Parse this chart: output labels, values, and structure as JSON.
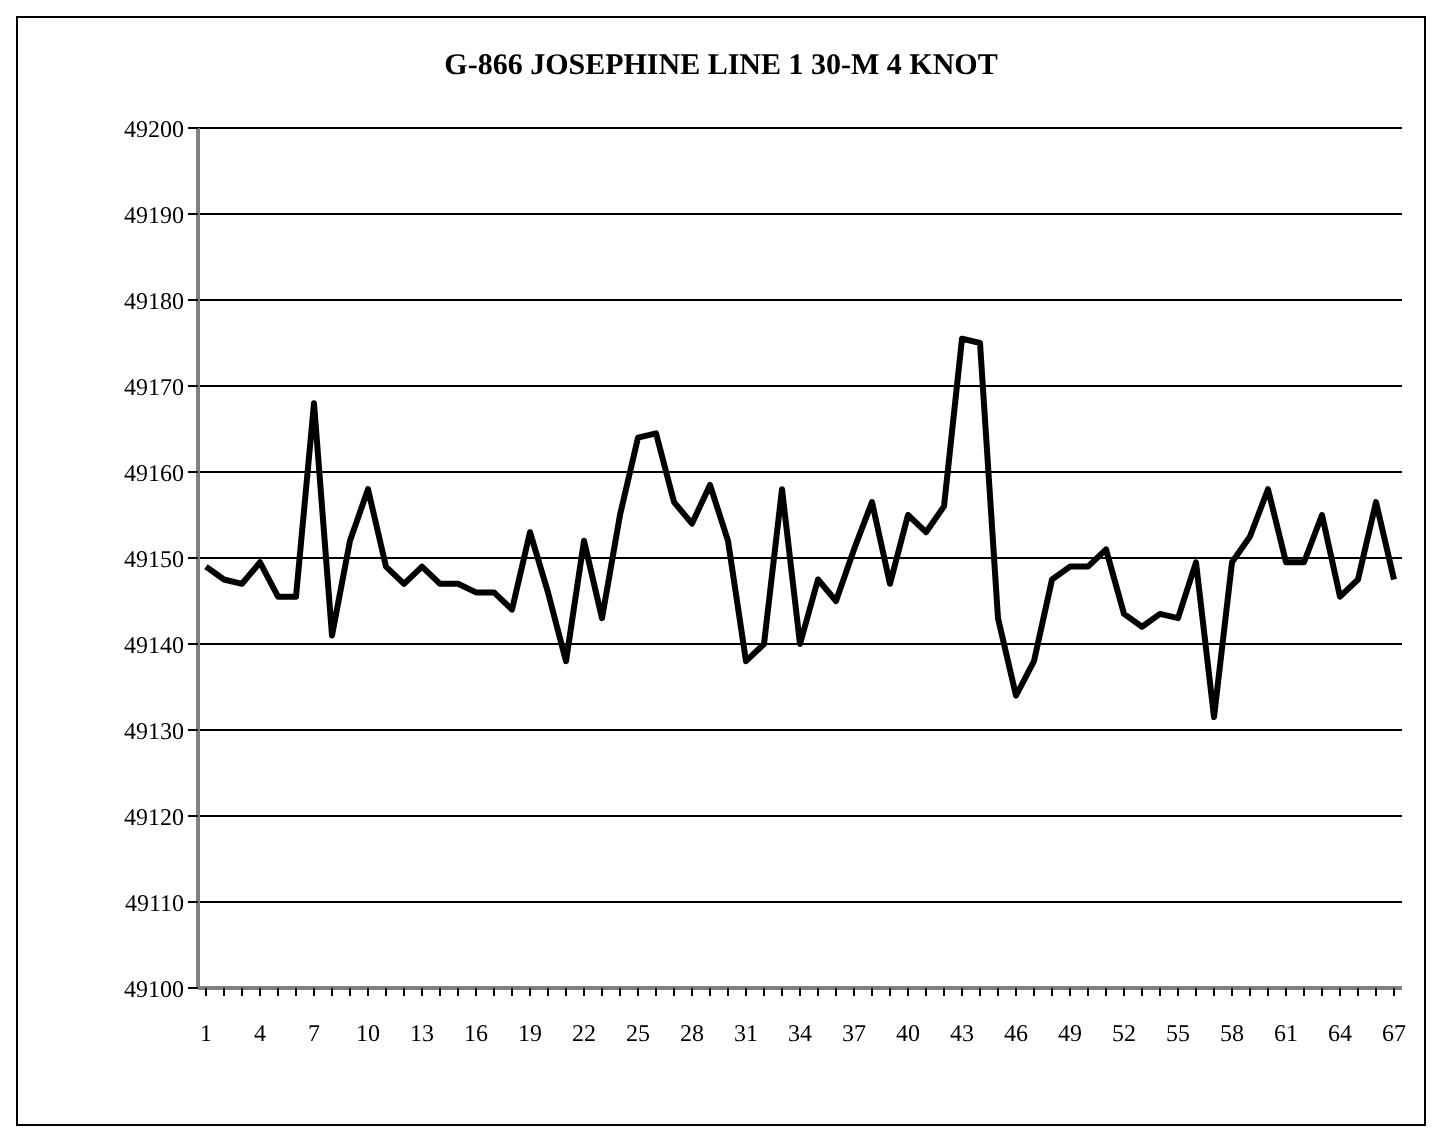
{
  "chart_data": {
    "type": "line",
    "title": "G-866 JOSEPHINE LINE 1 30-M 4 KNOT",
    "categories": [
      "1",
      null,
      null,
      "4",
      null,
      null,
      "7",
      null,
      null,
      "10",
      null,
      null,
      "13",
      null,
      null,
      "16",
      null,
      null,
      "19",
      null,
      null,
      "22",
      null,
      null,
      "25",
      null,
      null,
      "28",
      null,
      null,
      "31",
      null,
      null,
      "34",
      null,
      null,
      "37",
      null,
      null,
      "40",
      null,
      null,
      "43",
      null,
      null,
      "46",
      null,
      null,
      "49",
      null,
      null,
      "52",
      null,
      null,
      "55",
      null,
      null,
      "58",
      null,
      null,
      "61",
      null,
      null,
      "64",
      null,
      null,
      "67"
    ],
    "series": [
      {
        "color": "#000000",
        "values": [
          49149,
          49147.5,
          49147,
          49149.5,
          49145.5,
          49145.5,
          49168,
          49141,
          49152,
          49158,
          49149,
          49147,
          49149,
          49147,
          49147,
          49146,
          49146,
          49144,
          49153,
          49146,
          49138,
          49152,
          49143,
          49155,
          49164,
          49164.5,
          49156.5,
          49154,
          49158.5,
          49152,
          49138,
          49140,
          49158,
          49140,
          49147.5,
          49145,
          49151,
          49156.5,
          49147,
          49155,
          49153,
          49156,
          49175.5,
          49175,
          49143,
          49134,
          49138,
          49147.5,
          49149,
          49149,
          49151,
          49143.5,
          49142,
          49143.5,
          49143,
          49149.5,
          49131.5,
          49149.5,
          49152.5,
          49158,
          49149.5,
          49149.5,
          49155,
          49145.5,
          49147.5,
          49156.5,
          49147.5
        ]
      }
    ],
    "ylim": [
      49100,
      49200
    ],
    "yticks": [
      49100,
      49110,
      49120,
      49130,
      49140,
      49150,
      49160,
      49170,
      49180,
      49190,
      49200
    ],
    "grid": "y",
    "marker": "none",
    "line_style": "solid"
  }
}
